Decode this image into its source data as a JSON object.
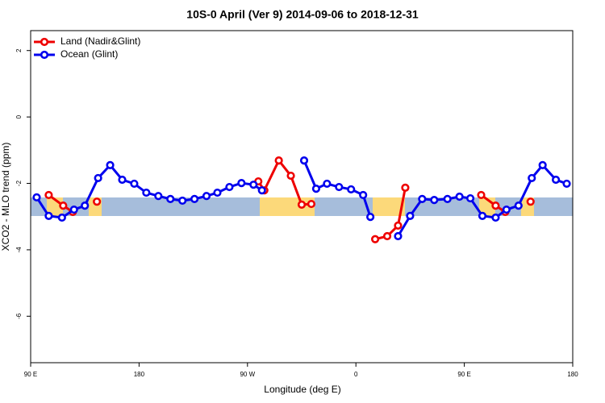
{
  "chart_data": {
    "type": "line",
    "title": "10S-0 April (Ver 9)   2014-09-06 to 2018-12-31",
    "x_label": "Longitude (deg E)",
    "y_label": "XCO2 - MLO trend (ppm)",
    "xlim": [
      90,
      540
    ],
    "xticks": [
      {
        "value": 90,
        "label": "90 E"
      },
      {
        "value": 180,
        "label": "180"
      },
      {
        "value": 270,
        "label": "90 W"
      },
      {
        "value": 360,
        "label": "0"
      },
      {
        "value": 450,
        "label": "90 E"
      },
      {
        "value": 540,
        "label": "180"
      }
    ],
    "ylim": [
      -7.4,
      2.6
    ],
    "yticks": [
      2,
      0,
      -2,
      -4,
      -6
    ],
    "legend": "top-left",
    "series": [
      {
        "name": "Land (Nadir&Glint)",
        "color": "#ee0000",
        "x": [
          105,
          117,
          125,
          null,
          145,
          null,
          279,
          284,
          296,
          306,
          315,
          323,
          null,
          376,
          386,
          395,
          401,
          null,
          464,
          476,
          484,
          null,
          505
        ],
        "values": [
          -2.35,
          -2.67,
          -2.86,
          null,
          -2.55,
          null,
          -1.94,
          -2.21,
          -1.31,
          -1.77,
          -2.64,
          -2.62,
          null,
          -3.68,
          -3.59,
          -3.27,
          -2.13,
          null,
          -2.35,
          -2.67,
          -2.86,
          null,
          -2.55
        ]
      },
      {
        "name": "Ocean (Glint)",
        "color": "#0000ee",
        "x": [
          95,
          105,
          116,
          126,
          135,
          146,
          156,
          166,
          176,
          186,
          196,
          206,
          216,
          226,
          236,
          245,
          255,
          265,
          275,
          282,
          null,
          317,
          327,
          336,
          346,
          356,
          366,
          372,
          null,
          395,
          405,
          415,
          425,
          436,
          446,
          455,
          465,
          476,
          485,
          495,
          506,
          515,
          526,
          535
        ],
        "values": [
          -2.42,
          -2.98,
          -3.03,
          -2.79,
          -2.67,
          -1.84,
          -1.45,
          -1.89,
          -2.01,
          -2.28,
          -2.38,
          -2.47,
          -2.52,
          -2.47,
          -2.38,
          -2.28,
          -2.11,
          -1.99,
          -2.04,
          -2.21,
          null,
          -1.31,
          -2.16,
          -2.01,
          -2.11,
          -2.18,
          -2.35,
          -3.01,
          null,
          -3.59,
          -2.98,
          -2.47,
          -2.5,
          -2.47,
          -2.4,
          -2.45,
          -2.98,
          -3.03,
          -2.79,
          -2.67,
          -1.84,
          -1.45,
          -1.89,
          -2.01
        ]
      }
    ]
  }
}
